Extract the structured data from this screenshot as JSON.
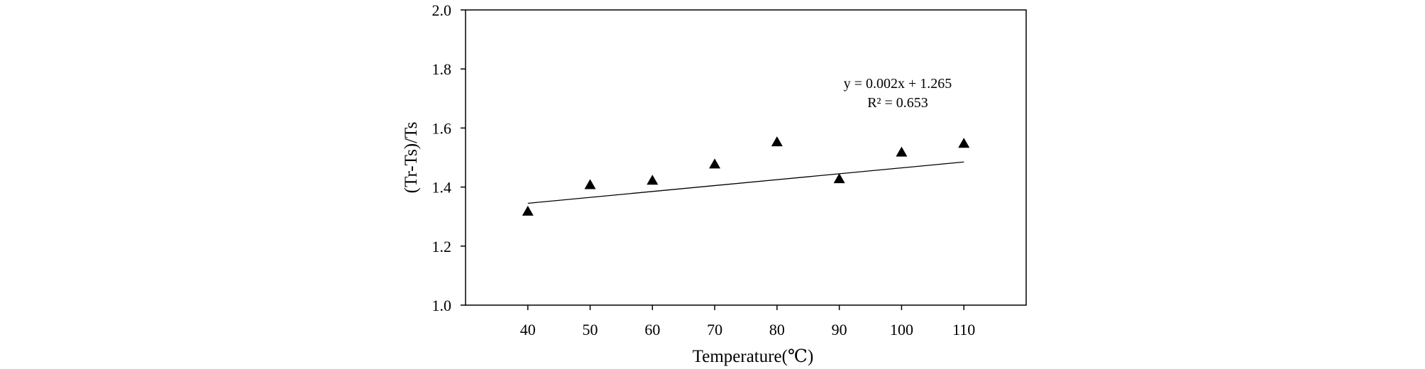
{
  "chart_data": {
    "type": "scatter",
    "title": "",
    "xlabel": "Temperature(℃)",
    "ylabel": "(Tr-Ts)/Ts",
    "xlim": [
      30,
      120
    ],
    "ylim": [
      1.0,
      2.0
    ],
    "x_ticks": [
      40,
      50,
      60,
      70,
      80,
      90,
      100,
      110
    ],
    "x_tick_labels": [
      "40",
      "50",
      "60",
      "70",
      "80",
      "90",
      "100",
      "110"
    ],
    "y_ticks": [
      1.0,
      1.2,
      1.4,
      1.6,
      1.8,
      2.0
    ],
    "y_tick_labels": [
      "1.0",
      "1.2",
      "1.4",
      "1.6",
      "1.8",
      "2.0"
    ],
    "grid": false,
    "legend": "none",
    "marker": "triangle",
    "marker_color": "#000000",
    "series": [
      {
        "x": [
          40,
          50,
          60,
          70,
          80,
          90,
          100,
          110
        ],
        "y": [
          1.32,
          1.41,
          1.425,
          1.48,
          1.555,
          1.43,
          1.52,
          1.55
        ]
      }
    ],
    "trendline": {
      "slope": 0.002,
      "intercept": 1.265,
      "x_range": [
        40,
        110
      ],
      "equation": "y = 0.002x + 1.265",
      "r_squared": "R² = 0.653"
    }
  }
}
